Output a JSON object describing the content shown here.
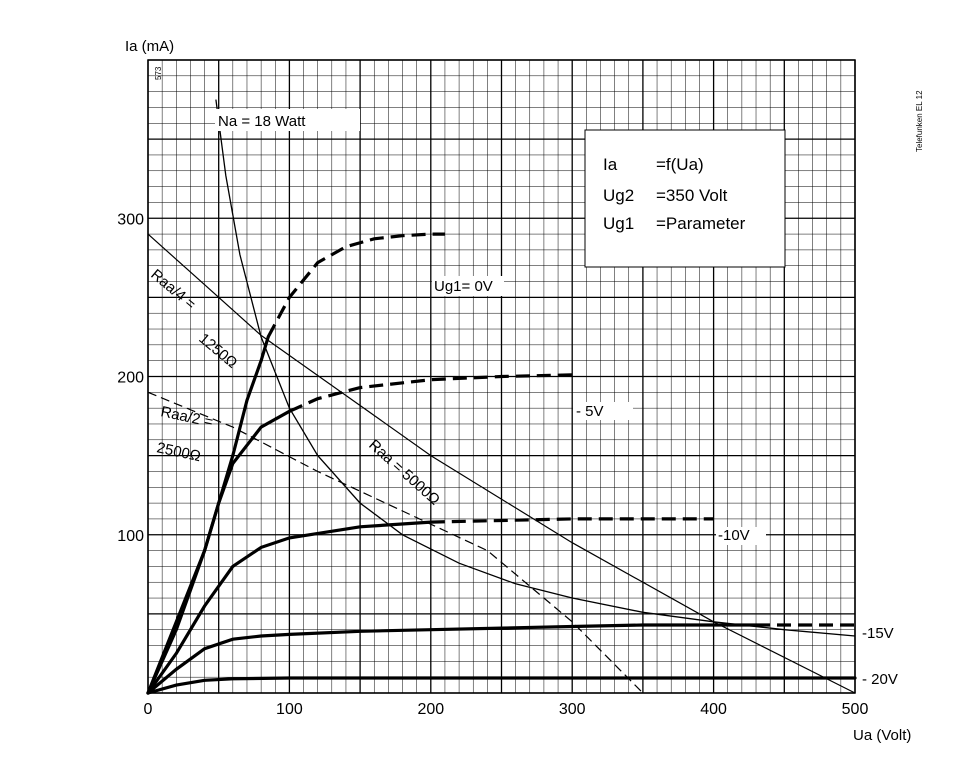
{
  "chart_data": {
    "type": "line",
    "title": "",
    "xlabel": "Ua (Volt)",
    "ylabel": "Ia (mA)",
    "xlim": [
      0,
      500
    ],
    "ylim": [
      0,
      400
    ],
    "grid": true,
    "x_ticks": [
      "0",
      "100",
      "200",
      "300",
      "400",
      "500"
    ],
    "y_ticks": [
      "100",
      "200",
      "300"
    ],
    "x_tick_values": [
      0,
      100,
      200,
      300,
      400,
      500
    ],
    "y_tick_values": [
      100,
      200,
      300
    ],
    "corner_left": "573",
    "corner_right": "Telefunken EL 12",
    "legend_box": {
      "lines": [
        {
          "label": "Ia",
          "value": "=f(Ua)"
        },
        {
          "label": "Ug2",
          "value": "=350 Volt"
        },
        {
          "label": "Ug1",
          "value": "=Parameter"
        }
      ]
    },
    "series": [
      {
        "name": "Ug1= 0V",
        "dashed_from_x": 85,
        "x": [
          0,
          20,
          40,
          50,
          60,
          70,
          80,
          85,
          100,
          120,
          140,
          160,
          180,
          200,
          210
        ],
        "y": [
          0,
          45,
          90,
          120,
          150,
          185,
          210,
          225,
          250,
          272,
          282,
          287,
          289,
          290,
          290
        ]
      },
      {
        "name": "-5V",
        "dashed_from_x": 100,
        "x": [
          0,
          20,
          40,
          50,
          60,
          80,
          100,
          120,
          150,
          200,
          250,
          300
        ],
        "y": [
          0,
          40,
          90,
          120,
          145,
          168,
          178,
          186,
          193,
          198,
          200,
          201
        ]
      },
      {
        "name": "-10V",
        "dashed_from_x": 200,
        "x": [
          0,
          20,
          40,
          60,
          80,
          100,
          150,
          200,
          250,
          300,
          350,
          400
        ],
        "y": [
          0,
          25,
          55,
          80,
          92,
          98,
          105,
          108,
          109,
          110,
          110,
          110
        ]
      },
      {
        "name": "-15V",
        "dashed_from_x": 430,
        "x": [
          0,
          20,
          40,
          60,
          80,
          100,
          150,
          200,
          250,
          300,
          350,
          400,
          430,
          450,
          500
        ],
        "y": [
          0,
          15,
          28,
          34,
          36,
          37,
          39,
          40,
          41,
          42,
          43,
          43,
          43,
          43,
          43
        ]
      },
      {
        "name": "- 20V",
        "dashed_from_x": null,
        "x": [
          0,
          20,
          40,
          60,
          100,
          200,
          300,
          400,
          500
        ],
        "y": [
          0,
          5,
          8,
          9,
          9.5,
          9.5,
          9.5,
          9.5,
          9.5
        ]
      }
    ],
    "load_lines": [
      {
        "name": "Raa/4 = 1250Ω",
        "dashed": false,
        "x": [
          0,
          40,
          80
        ],
        "y": [
          290,
          258,
          226
        ]
      },
      {
        "name": "Raa = 5000Ω",
        "dashed": false,
        "x": [
          80,
          200,
          300,
          400,
          500
        ],
        "y": [
          226,
          150,
          95,
          45,
          0
        ]
      },
      {
        "name": "Raa/2 = 2500Ω",
        "dashed": true,
        "x": [
          0,
          60,
          120,
          180,
          240,
          300,
          350
        ],
        "y": [
          190,
          168,
          140,
          115,
          90,
          45,
          0
        ]
      }
    ],
    "dissipation_curve": {
      "name": "Na = 18 Watt",
      "x": [
        48,
        55,
        65,
        80,
        100,
        120,
        150,
        180,
        220,
        260,
        300,
        350,
        400,
        450,
        500
      ],
      "y": [
        375,
        327,
        277,
        225,
        180,
        150,
        120,
        100,
        82,
        69,
        60,
        51,
        45,
        40,
        36
      ]
    },
    "annotations": [
      {
        "text": "Na  =  18 Watt"
      },
      {
        "text": "Ug1= 0V"
      },
      {
        "text": "- 5V"
      },
      {
        "text": "-10V"
      },
      {
        "text": "-15V"
      },
      {
        "text": "- 20V"
      },
      {
        "text": "Raa/4 ="
      },
      {
        "text": "1250Ω"
      },
      {
        "text": "Raa/2 ="
      },
      {
        "text": "2500Ω"
      },
      {
        "text": "Raa = 5000Ω"
      }
    ]
  }
}
